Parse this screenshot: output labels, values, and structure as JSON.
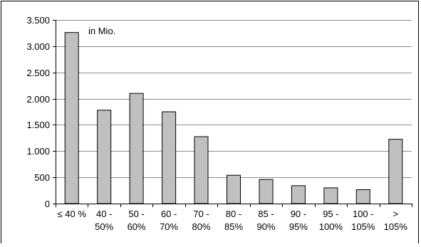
{
  "chart_data": {
    "type": "bar",
    "annotation": "in Mio.",
    "title": "",
    "xlabel": "",
    "ylabel": "",
    "categories": [
      [
        "≤ 40 %"
      ],
      [
        "40 -",
        "50%"
      ],
      [
        "50 -",
        "60%"
      ],
      [
        "60 -",
        "70%"
      ],
      [
        "70 -",
        "80%"
      ],
      [
        "80 -",
        "85%"
      ],
      [
        "85 -",
        "90%"
      ],
      [
        "90 -",
        "95%"
      ],
      [
        "95 -",
        "100%"
      ],
      [
        "100 -",
        "105%"
      ],
      [
        ">",
        "105%"
      ]
    ],
    "values": [
      3260,
      1780,
      2100,
      1750,
      1275,
      540,
      460,
      340,
      300,
      265,
      1225
    ],
    "ylim": [
      0,
      3500
    ],
    "yticks": [
      0,
      500,
      1000,
      1500,
      2000,
      2500,
      3000,
      3500
    ],
    "ytick_labels": [
      "0",
      "500",
      "1.000",
      "1.500",
      "2.000",
      "2.500",
      "3.000",
      "3.500"
    ],
    "grid": true,
    "legend": "none",
    "colors": {
      "bar_fill": "#c0c0c0",
      "bar_stroke": "#000000",
      "grid": "#8c8c8c",
      "axis": "#000000",
      "frame": "#000000"
    }
  }
}
